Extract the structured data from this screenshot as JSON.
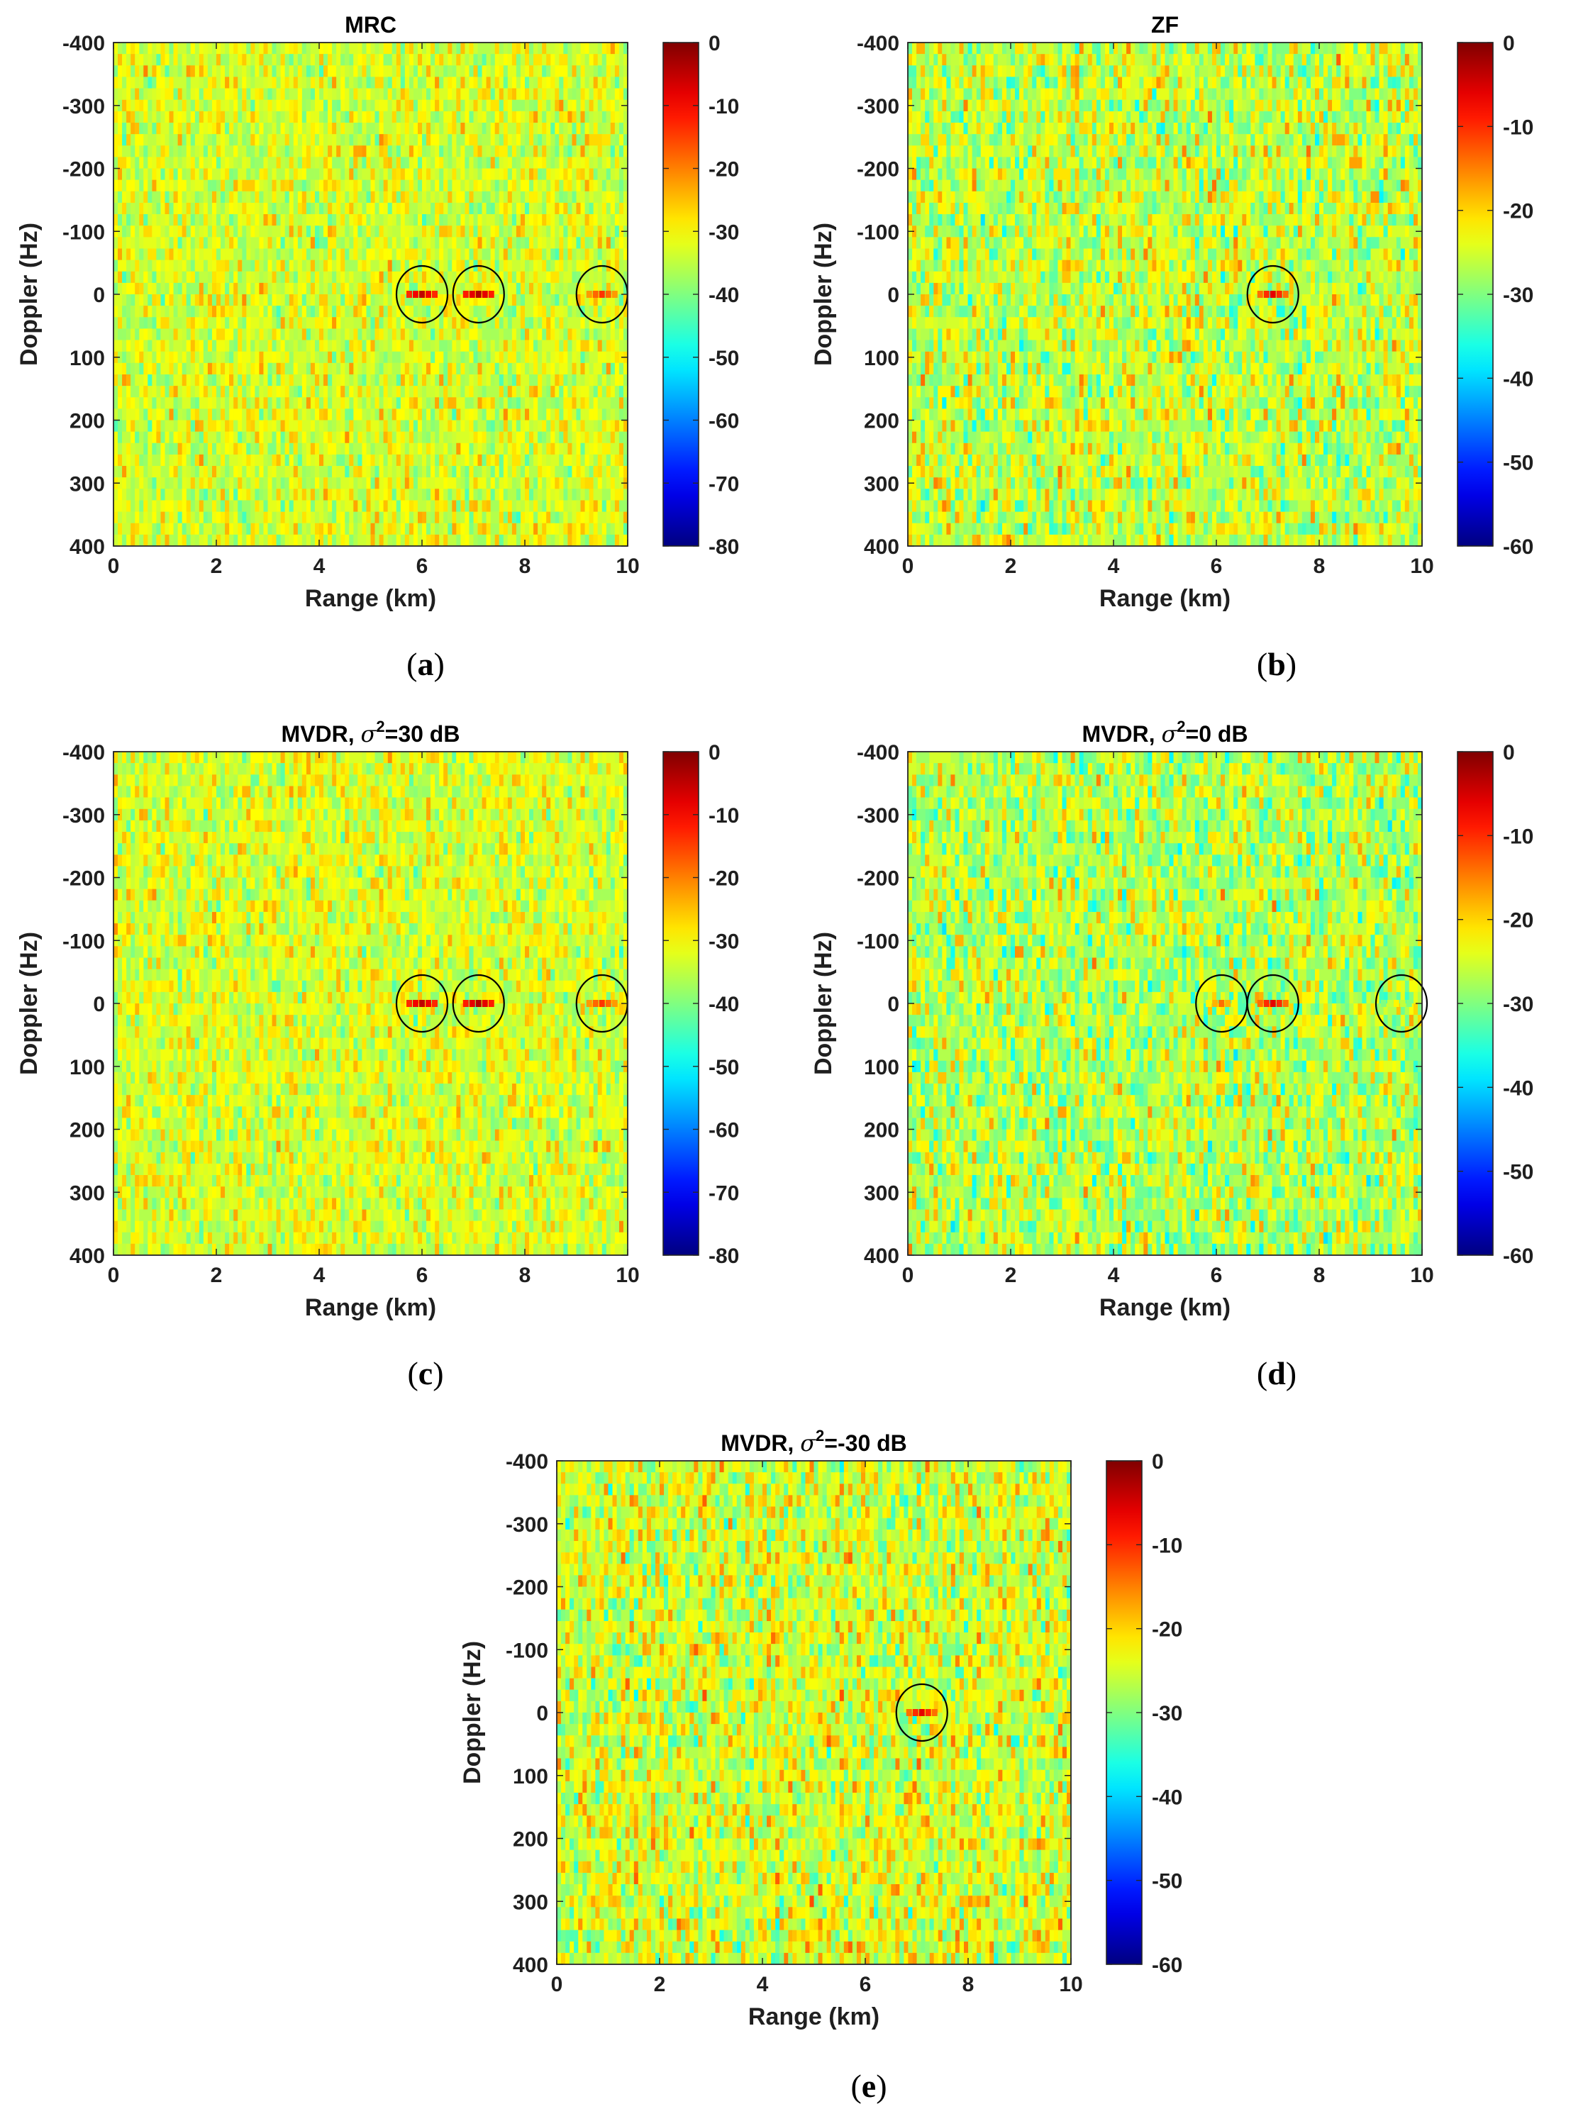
{
  "chart_data": [
    {
      "type": "heatmap",
      "panel_label": "a",
      "title": "MRC",
      "title_sup": "",
      "xlabel": "Range (km)",
      "ylabel": "Doppler (Hz)",
      "xlim": [
        0,
        10
      ],
      "ylim": [
        -400,
        400
      ],
      "y_reversed": true,
      "xticks": [
        0,
        2,
        4,
        6,
        8,
        10
      ],
      "yticks": [
        -400,
        -300,
        -200,
        -100,
        0,
        100,
        200,
        300,
        400
      ],
      "colorbar": {
        "colormap": "jet",
        "clim": [
          -80,
          0
        ],
        "ticks": [
          0,
          -10,
          -20,
          -30,
          -40,
          -50,
          -60,
          -70,
          -80
        ]
      },
      "background_level": -33,
      "targets": [
        {
          "range_km": 6.0,
          "doppler_hz": 0,
          "level": -5
        },
        {
          "range_km": 7.1,
          "doppler_hz": 0,
          "level": -4
        },
        {
          "range_km": 9.5,
          "doppler_hz": 0,
          "level": -14
        }
      ],
      "circles": [
        {
          "range_km": 6.0,
          "doppler_hz": 0
        },
        {
          "range_km": 7.1,
          "doppler_hz": 0
        },
        {
          "range_km": 9.5,
          "doppler_hz": 0
        }
      ]
    },
    {
      "type": "heatmap",
      "panel_label": "b",
      "title": "ZF",
      "title_sup": "",
      "xlabel": "Range (km)",
      "ylabel": "Doppler (Hz)",
      "xlim": [
        0,
        10
      ],
      "ylim": [
        -400,
        400
      ],
      "y_reversed": true,
      "xticks": [
        0,
        2,
        4,
        6,
        8,
        10
      ],
      "yticks": [
        -400,
        -300,
        -200,
        -100,
        0,
        100,
        200,
        300,
        400
      ],
      "colorbar": {
        "colormap": "jet",
        "clim": [
          -60,
          0
        ],
        "ticks": [
          0,
          -10,
          -20,
          -30,
          -40,
          -50,
          -60
        ]
      },
      "background_level": -26,
      "targets": [
        {
          "range_km": 7.1,
          "doppler_hz": 0,
          "level": -6
        }
      ],
      "circles": [
        {
          "range_km": 7.1,
          "doppler_hz": 0
        }
      ]
    },
    {
      "type": "heatmap",
      "panel_label": "c",
      "title": "MVDR, σ",
      "title_sup": "2",
      "title_tail": "=30 dB",
      "xlabel": "Range (km)",
      "ylabel": "Doppler (Hz)",
      "xlim": [
        0,
        10
      ],
      "ylim": [
        -400,
        400
      ],
      "y_reversed": true,
      "xticks": [
        0,
        2,
        4,
        6,
        8,
        10
      ],
      "yticks": [
        -400,
        -300,
        -200,
        -100,
        0,
        100,
        200,
        300,
        400
      ],
      "colorbar": {
        "colormap": "jet",
        "clim": [
          -80,
          0
        ],
        "ticks": [
          0,
          -10,
          -20,
          -30,
          -40,
          -50,
          -60,
          -70,
          -80
        ]
      },
      "background_level": -33,
      "targets": [
        {
          "range_km": 6.0,
          "doppler_hz": 0,
          "level": -5
        },
        {
          "range_km": 7.1,
          "doppler_hz": 0,
          "level": -4
        },
        {
          "range_km": 9.5,
          "doppler_hz": 0,
          "level": -14
        }
      ],
      "circles": [
        {
          "range_km": 6.0,
          "doppler_hz": 0
        },
        {
          "range_km": 7.1,
          "doppler_hz": 0
        },
        {
          "range_km": 9.5,
          "doppler_hz": 0
        }
      ]
    },
    {
      "type": "heatmap",
      "panel_label": "d",
      "title": "MVDR, σ",
      "title_sup": "2",
      "title_tail": "=0 dB",
      "xlabel": "Range (km)",
      "ylabel": "Doppler (Hz)",
      "xlim": [
        0,
        10
      ],
      "ylim": [
        -400,
        400
      ],
      "y_reversed": true,
      "xticks": [
        0,
        2,
        4,
        6,
        8,
        10
      ],
      "yticks": [
        -400,
        -300,
        -200,
        -100,
        0,
        100,
        200,
        300,
        400
      ],
      "colorbar": {
        "colormap": "jet",
        "clim": [
          -60,
          0
        ],
        "ticks": [
          0,
          -10,
          -20,
          -30,
          -40,
          -50,
          -60
        ]
      },
      "background_level": -27,
      "targets": [
        {
          "range_km": 6.1,
          "doppler_hz": 0,
          "level": -14
        },
        {
          "range_km": 7.1,
          "doppler_hz": 0,
          "level": -6
        },
        {
          "range_km": 9.5,
          "doppler_hz": 0,
          "level": -22
        }
      ],
      "circles": [
        {
          "range_km": 6.1,
          "doppler_hz": 0
        },
        {
          "range_km": 7.1,
          "doppler_hz": 0
        },
        {
          "range_km": 9.6,
          "doppler_hz": 0
        }
      ]
    },
    {
      "type": "heatmap",
      "panel_label": "e",
      "title": "MVDR, σ",
      "title_sup": "2",
      "title_tail": "=-30 dB",
      "xlabel": "Range (km)",
      "ylabel": "Doppler (Hz)",
      "xlim": [
        0,
        10
      ],
      "ylim": [
        -400,
        400
      ],
      "y_reversed": true,
      "xticks": [
        0,
        2,
        4,
        6,
        8,
        10
      ],
      "yticks": [
        -400,
        -300,
        -200,
        -100,
        0,
        100,
        200,
        300,
        400
      ],
      "colorbar": {
        "colormap": "jet",
        "clim": [
          -60,
          0
        ],
        "ticks": [
          0,
          -10,
          -20,
          -30,
          -40,
          -50,
          -60
        ]
      },
      "background_level": -25,
      "targets": [
        {
          "range_km": 7.1,
          "doppler_hz": 0,
          "level": -6
        }
      ],
      "circles": [
        {
          "range_km": 7.1,
          "doppler_hz": 0
        }
      ]
    }
  ]
}
